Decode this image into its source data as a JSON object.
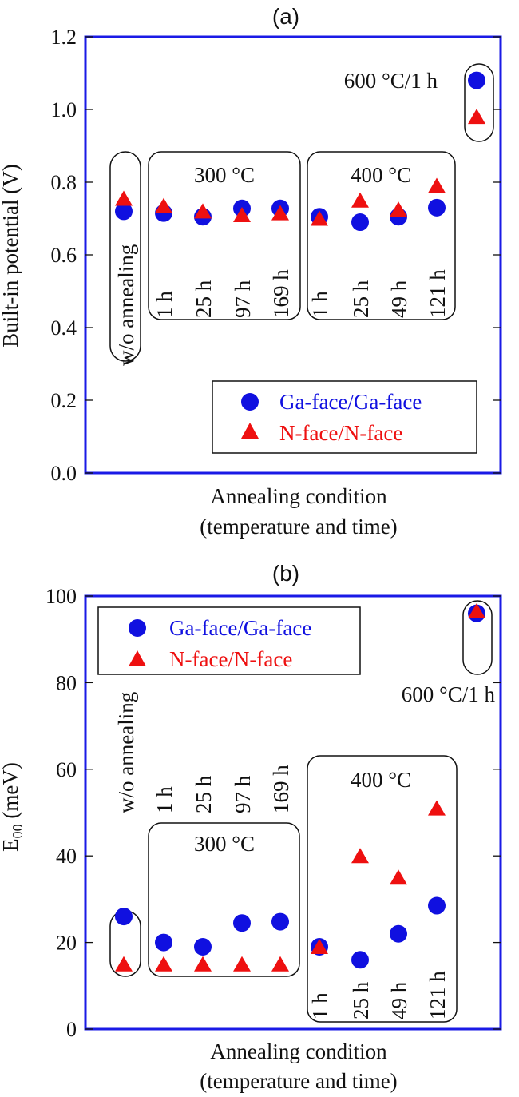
{
  "colors": {
    "frame": "#1a1ae6",
    "ga": "#1010e0",
    "n": "#ee1010",
    "text": "#111111"
  },
  "conditions": [
    "w/o annealing",
    "1 h",
    "25 h",
    "97 h",
    "169 h",
    "1 h",
    "25 h",
    "49 h",
    "121 h",
    ""
  ],
  "chart_data": [
    {
      "type": "scatter",
      "panel_label": "(a)",
      "title": "",
      "xlabel": "Annealing condition",
      "xlabel_sub": "(temperature and time)",
      "ylabel": "Built-in potential (V)",
      "ylim": [
        0,
        1.2
      ],
      "yticks": [
        "0.0",
        "0.2",
        "0.4",
        "0.6",
        "0.8",
        "1.0",
        "1.2"
      ],
      "grid": false,
      "legend_position": "bottom-right",
      "series": [
        {
          "name": "Ga-face/Ga-face",
          "marker": "circle",
          "values": [
            0.72,
            0.715,
            0.705,
            0.728,
            0.728,
            0.705,
            0.69,
            0.705,
            0.73,
            1.08
          ]
        },
        {
          "name": "N-face/N-face",
          "marker": "triangle",
          "values": [
            0.755,
            0.735,
            0.72,
            0.71,
            0.715,
            0.7,
            0.75,
            0.725,
            0.79,
            0.98
          ]
        }
      ],
      "group_labels": [
        "300 °C",
        "400 °C",
        "600 °C/1 h"
      ]
    },
    {
      "type": "scatter",
      "panel_label": "(b)",
      "title": "",
      "xlabel": "Annealing condition",
      "xlabel_sub": "(temperature and time)",
      "ylabel": "E",
      "ylabel_sub": "00",
      "ylabel_unit": " (meV)",
      "ylim": [
        0,
        100
      ],
      "yticks": [
        "0",
        "20",
        "40",
        "60",
        "80",
        "100"
      ],
      "grid": false,
      "legend_position": "top-left",
      "series": [
        {
          "name": "Ga-face/Ga-face",
          "marker": "circle",
          "values": [
            26,
            20,
            19,
            24.5,
            24.8,
            19,
            16,
            22,
            28.5,
            96
          ]
        },
        {
          "name": "N-face/N-face",
          "marker": "triangle",
          "values": [
            15,
            15,
            15,
            15,
            15,
            19,
            40,
            35,
            51,
            96.5
          ]
        }
      ],
      "group_labels": [
        "300 °C",
        "400 °C",
        "600 °C/1 h"
      ]
    }
  ]
}
